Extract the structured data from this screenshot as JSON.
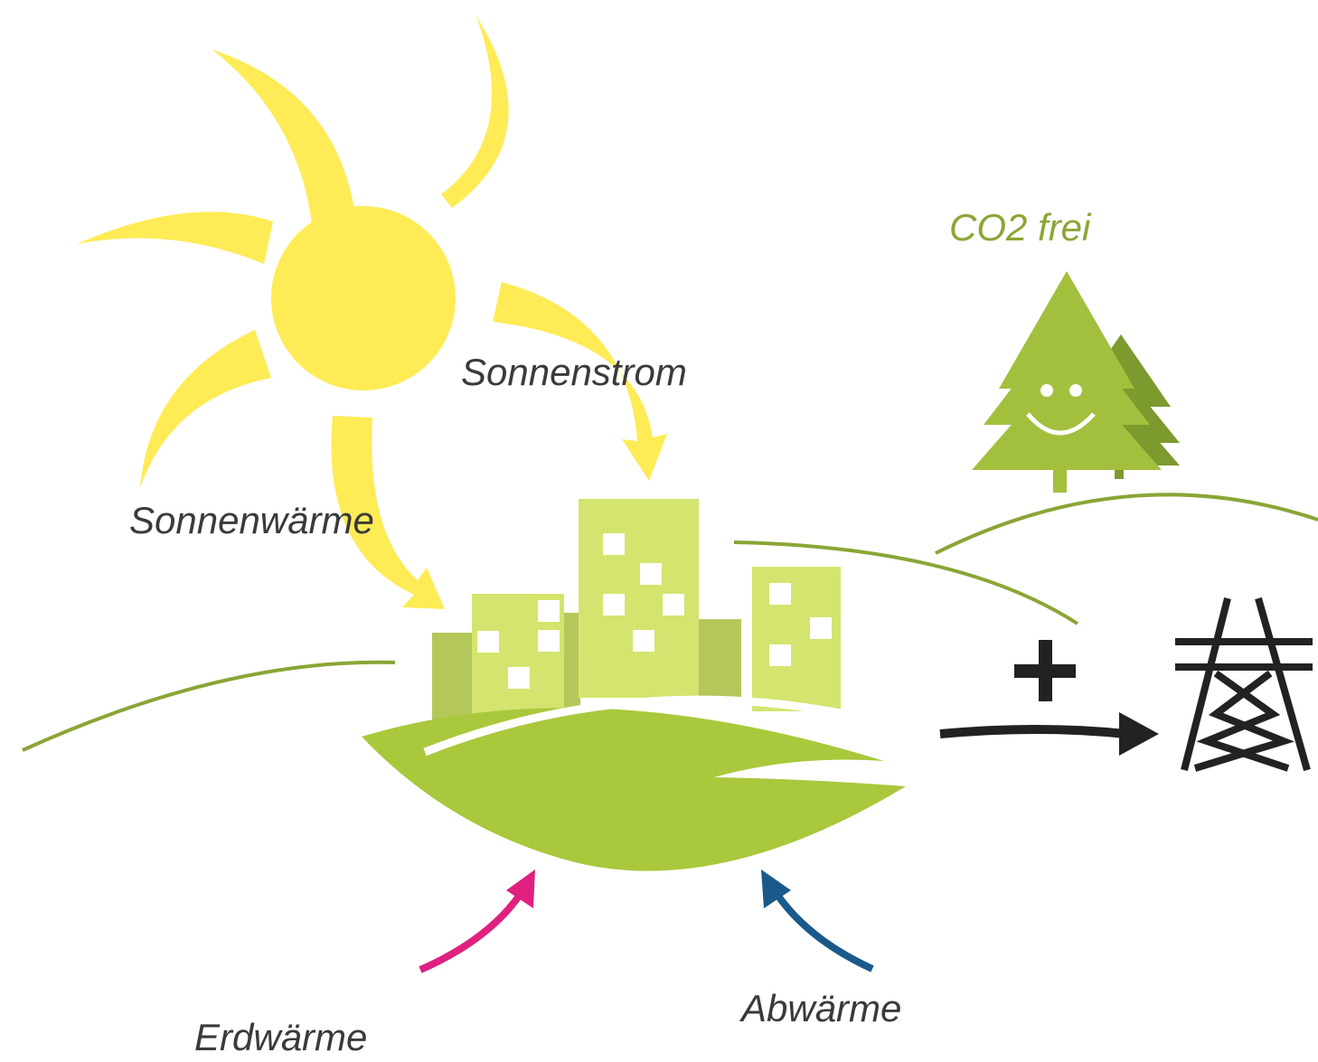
{
  "labels": {
    "solar_power": "Sonnenstrom",
    "solar_heat": "Sonnenwärme",
    "co2_free": "CO2 frei",
    "geothermal": "Erdwärme",
    "waste_heat": "Abwärme"
  }
}
